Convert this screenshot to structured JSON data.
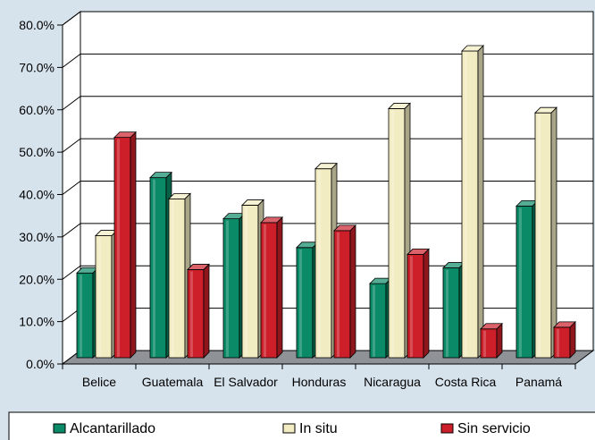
{
  "chart_data": {
    "type": "bar",
    "title": "",
    "xlabel": "",
    "ylabel": "",
    "ylim": [
      0,
      80
    ],
    "y_tick_labels": [
      "0.0%",
      "10.0%",
      "20.0%",
      "30.0%",
      "40.0%",
      "50.0%",
      "60.0%",
      "70.0%",
      "80.0%"
    ],
    "categories": [
      "Belice",
      "Guatemala",
      "El Salvador",
      "Honduras",
      "Nicaragua",
      "Costa Rica",
      "Panamá"
    ],
    "series": [
      {
        "name": "Alcantarillado",
        "color": "#0a8a66",
        "values": [
          20.0,
          42.5,
          32.8,
          26.0,
          17.5,
          21.2,
          35.8
        ]
      },
      {
        "name": "In situ",
        "color": "#f2ecc2",
        "values": [
          28.8,
          37.5,
          36.0,
          44.6,
          58.8,
          72.4,
          57.8
        ]
      },
      {
        "name": "Sin servicio",
        "color": "#cc1f2a",
        "values": [
          52.0,
          20.8,
          31.9,
          30.0,
          24.4,
          6.8,
          7.2
        ]
      }
    ],
    "grid": true,
    "legend_position": "bottom"
  }
}
